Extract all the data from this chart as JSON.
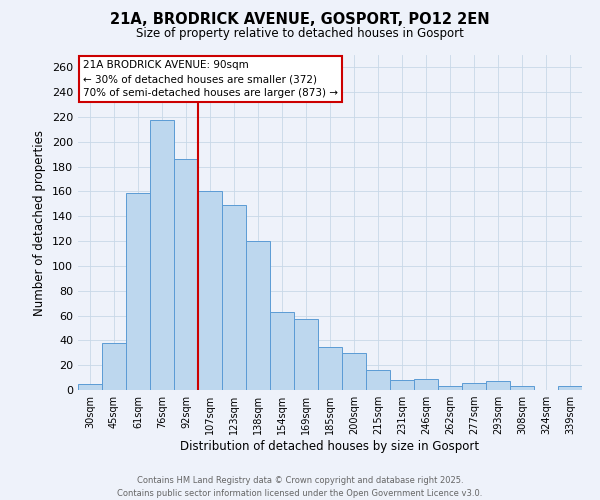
{
  "title": "21A, BRODRICK AVENUE, GOSPORT, PO12 2EN",
  "subtitle": "Size of property relative to detached houses in Gosport",
  "xlabel": "Distribution of detached houses by size in Gosport",
  "ylabel": "Number of detached properties",
  "bar_color": "#bdd7ee",
  "bar_edge_color": "#5b9bd5",
  "grid_color": "#c8d8e8",
  "background_color": "#eef2fa",
  "annotation_box_color": "#ffffff",
  "annotation_border_color": "#cc0000",
  "vline_color": "#cc0000",
  "categories": [
    "30sqm",
    "45sqm",
    "61sqm",
    "76sqm",
    "92sqm",
    "107sqm",
    "123sqm",
    "138sqm",
    "154sqm",
    "169sqm",
    "185sqm",
    "200sqm",
    "215sqm",
    "231sqm",
    "246sqm",
    "262sqm",
    "277sqm",
    "293sqm",
    "308sqm",
    "324sqm",
    "339sqm"
  ],
  "values": [
    5,
    38,
    159,
    218,
    186,
    160,
    149,
    120,
    63,
    57,
    35,
    30,
    16,
    8,
    9,
    3,
    6,
    7,
    3,
    0,
    3
  ],
  "ylim": [
    0,
    270
  ],
  "yticks": [
    0,
    20,
    40,
    60,
    80,
    100,
    120,
    140,
    160,
    180,
    200,
    220,
    240,
    260
  ],
  "vline_x": 4.5,
  "annotation_text_line1": "21A BRODRICK AVENUE: 90sqm",
  "annotation_text_line2": "← 30% of detached houses are smaller (372)",
  "annotation_text_line3": "70% of semi-detached houses are larger (873) →",
  "footer_line1": "Contains HM Land Registry data © Crown copyright and database right 2025.",
  "footer_line2": "Contains public sector information licensed under the Open Government Licence v3.0."
}
